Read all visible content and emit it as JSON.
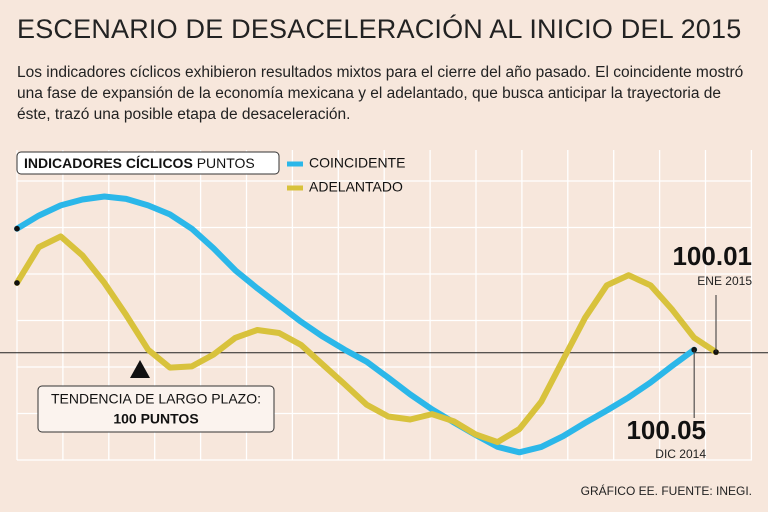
{
  "chart_data": {
    "type": "line",
    "title": "ESCENARIO DE DESACELERACIÓN AL INICIO DEL 2015",
    "subtitle": "Los indicadores cíclicos exhibieron resultados mixtos para el cierre del año pasado. El coincidente mostró una fase de expansión de la economía mexicana y el adelantado, que busca anticipar la trayectoria de éste, trazó una posible etapa de desaceleración.",
    "legend_title": "INDICADORES CÍCLICOS",
    "legend_unit": "PUNTOS",
    "categories": [
      null,
      null,
      null,
      null,
      null,
      null,
      null,
      null,
      null,
      null,
      null,
      null,
      null,
      null,
      null,
      null,
      null,
      null,
      null,
      null,
      null,
      null,
      null,
      null,
      null,
      null,
      null,
      null,
      null,
      null,
      null,
      null,
      null
    ],
    "series": [
      {
        "name": "COINCIDENTE",
        "color": "#2bb7e9",
        "values": [
          102.08,
          102.3,
          102.47,
          102.57,
          102.62,
          102.58,
          102.47,
          102.32,
          102.08,
          101.75,
          101.38,
          101.08,
          100.8,
          100.52,
          100.27,
          100.05,
          99.85,
          99.58,
          99.3,
          99.05,
          98.83,
          98.62,
          98.42,
          98.33,
          98.42,
          98.6,
          98.82,
          99.03,
          99.25,
          99.5,
          99.78,
          100.05,
          null
        ]
      },
      {
        "name": "ADELANTADO",
        "color": "#d8c23c",
        "values": [
          101.17,
          101.77,
          101.95,
          101.63,
          101.17,
          100.63,
          100.05,
          99.75,
          99.77,
          99.97,
          100.25,
          100.38,
          100.33,
          100.13,
          99.8,
          99.47,
          99.13,
          98.93,
          98.88,
          98.97,
          98.85,
          98.63,
          98.5,
          98.72,
          99.18,
          99.88,
          100.58,
          101.13,
          101.3,
          101.13,
          100.72,
          100.25,
          100.01
        ]
      }
    ],
    "end_dates": {
      "series0": "DIC 2014",
      "series1": "ENE 2015"
    },
    "reference": {
      "value": 100,
      "label_line1": "TENDENCIA DE LARGO PLAZO:",
      "label_line2": "100 PUNTOS"
    },
    "ylim": [
      98.2,
      103.4
    ],
    "grid": true,
    "source": "GRÁFICO EE. FUENTE: INEGI."
  }
}
